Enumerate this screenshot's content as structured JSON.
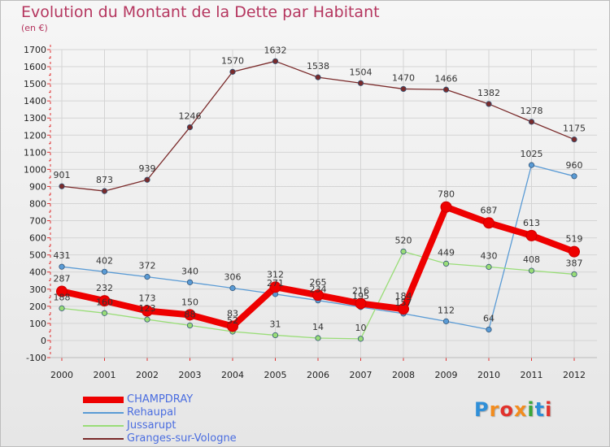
{
  "title": "Evolution du Montant de la Dette par Habitant",
  "subtitle": "(en €)",
  "logo": {
    "text": "Proxiti",
    "letter_colors": [
      "#2f8fd8",
      "#f28c1e",
      "#e2322c",
      "#f28c1e",
      "#3aa63a",
      "#2f8fd8",
      "#e2322c"
    ]
  },
  "chart_data": {
    "type": "line",
    "title": "Evolution du Montant de la Dette par Habitant",
    "subtitle": "(en €)",
    "x": [
      "2000",
      "2001",
      "2002",
      "2003",
      "2004",
      "2005",
      "2006",
      "2007",
      "2008",
      "2009",
      "2010",
      "2011",
      "2012"
    ],
    "ylim": [
      -100,
      1700
    ],
    "yticks": [
      -100,
      0,
      100,
      200,
      300,
      400,
      500,
      600,
      700,
      800,
      900,
      1000,
      1100,
      1200,
      1300,
      1400,
      1500,
      1600,
      1700
    ],
    "grid": true,
    "legend_position": "bottom-left",
    "series": [
      {
        "name": "CHAMPDRAY",
        "color": "#ee0000",
        "emphasis": true,
        "values": [
          287,
          232,
          173,
          150,
          83,
          312,
          265,
          216,
          184,
          780,
          687,
          613,
          519
        ],
        "labels": [
          "287",
          "232",
          "173",
          "150",
          "83",
          "312",
          "265",
          "216",
          "184",
          "780",
          "687",
          "613",
          "519"
        ]
      },
      {
        "name": "Rehaupal",
        "color": "#5a9bd5",
        "emphasis": false,
        "values": [
          431,
          402,
          372,
          340,
          306,
          271,
          234,
          195,
          157,
          112,
          64,
          1025,
          960
        ],
        "labels": [
          "431",
          "402",
          "372",
          "340",
          "306",
          "271",
          "234",
          "195",
          "157",
          "112",
          "64",
          "1025",
          "960"
        ]
      },
      {
        "name": "Jussarupt",
        "color": "#99dd77",
        "emphasis": false,
        "values": [
          188,
          160,
          123,
          88,
          52,
          31,
          14,
          10,
          520,
          449,
          430,
          408,
          387
        ],
        "labels": [
          "188",
          "160",
          "123",
          "88",
          "52",
          "31",
          "14",
          "10",
          "520",
          "449",
          "430",
          "408",
          "387"
        ]
      },
      {
        "name": "Granges-sur-Vologne",
        "color": "#7a2a2a",
        "emphasis": false,
        "values": [
          901,
          873,
          939,
          1246,
          1570,
          1632,
          1538,
          1504,
          1470,
          1466,
          1382,
          1278,
          1175
        ],
        "labels": [
          "901",
          "873",
          "939",
          "1246",
          "1570",
          "1632",
          "1538",
          "1504",
          "1470",
          "1466",
          "1382",
          "1278",
          "1175"
        ]
      }
    ]
  }
}
